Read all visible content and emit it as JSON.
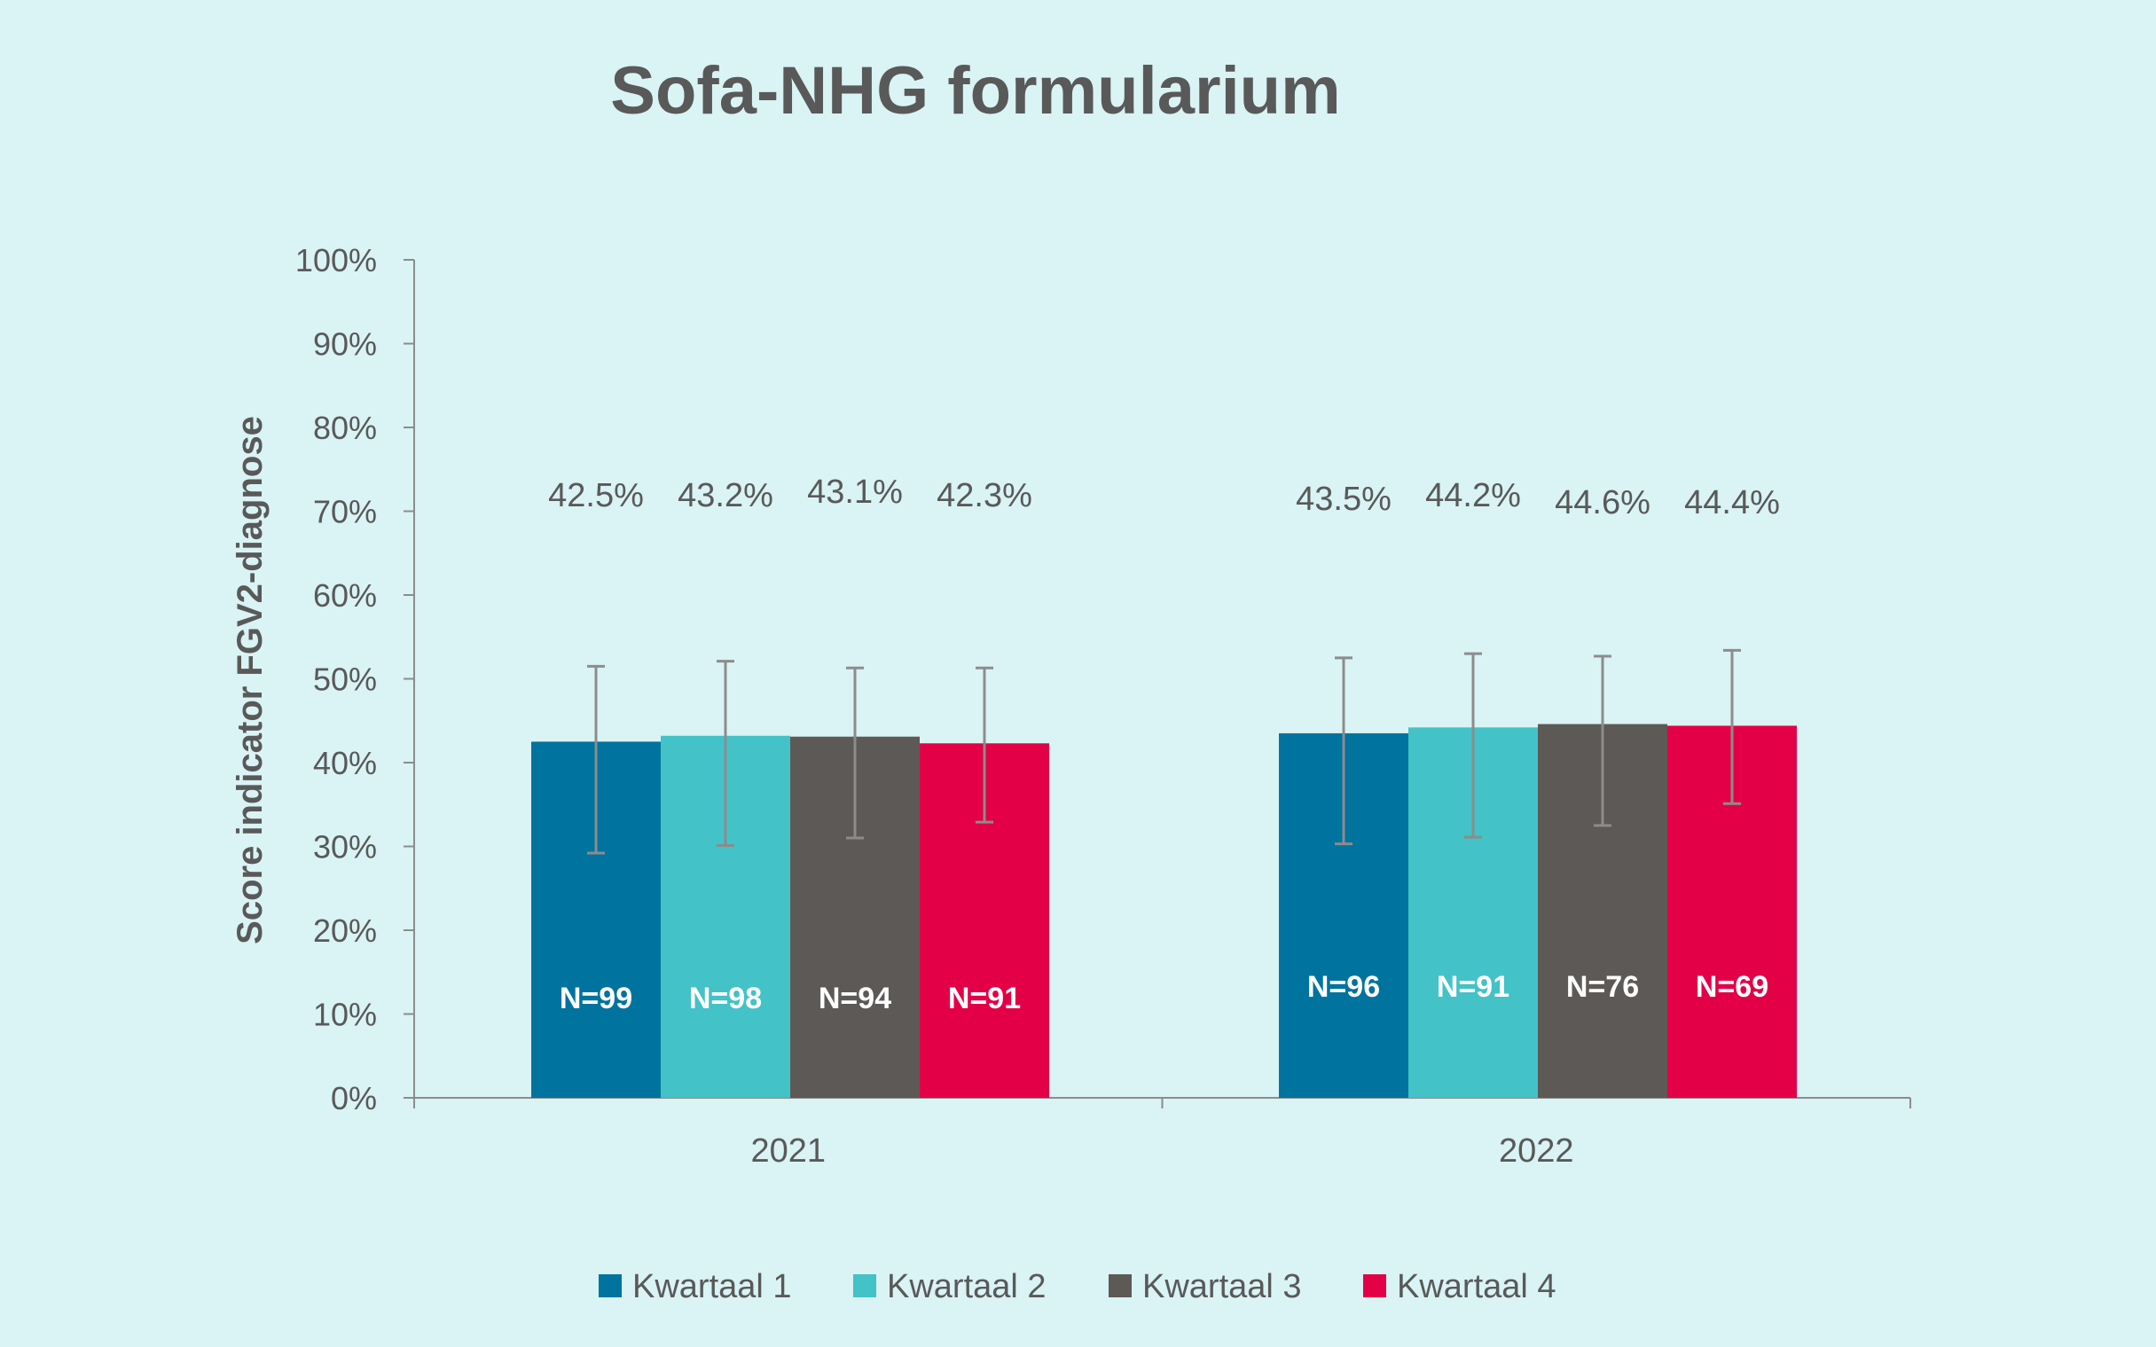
{
  "chart_data": {
    "type": "bar",
    "title": "Sofa-NHG formularium",
    "xlabel": "",
    "ylabel": "Score indicator FGV2-diagnose",
    "categories": [
      "2021",
      "2022"
    ],
    "ylim": [
      0,
      100
    ],
    "yticks": [
      "0%",
      "10%",
      "20%",
      "30%",
      "40%",
      "50%",
      "60%",
      "70%",
      "80%",
      "90%",
      "100%"
    ],
    "grid": false,
    "legend_position": "bottom",
    "series": [
      {
        "name": "Kwartaal 1",
        "color": "#00739e",
        "values": [
          42.5,
          43.5
        ],
        "value_labels": [
          "42.5%",
          "43.5%"
        ],
        "n_labels": [
          "N=99",
          "N=96"
        ],
        "error_low": [
          29.2,
          30.3
        ],
        "error_high": [
          51.5,
          52.5
        ]
      },
      {
        "name": "Kwartaal 2",
        "color": "#43c2c8",
        "values": [
          43.2,
          44.2
        ],
        "value_labels": [
          "43.2%",
          "44.2%"
        ],
        "n_labels": [
          "N=98",
          "N=91"
        ],
        "error_low": [
          30.1,
          31.1
        ],
        "error_high": [
          52.1,
          53.0
        ]
      },
      {
        "name": "Kwartaal 3",
        "color": "#5d5956",
        "values": [
          43.1,
          44.6
        ],
        "value_labels": [
          "43.1%",
          "44.6%"
        ],
        "n_labels": [
          "N=94",
          "N=76"
        ],
        "error_low": [
          31.0,
          32.5
        ],
        "error_high": [
          51.3,
          52.7
        ]
      },
      {
        "name": "Kwartaal 4",
        "color": "#e30046",
        "values": [
          42.3,
          44.4
        ],
        "value_labels": [
          "42.3%",
          "44.4%"
        ],
        "n_labels": [
          "N=91",
          "N=69"
        ],
        "error_low": [
          32.9,
          35.1
        ],
        "error_high": [
          51.3,
          53.4
        ]
      }
    ]
  }
}
